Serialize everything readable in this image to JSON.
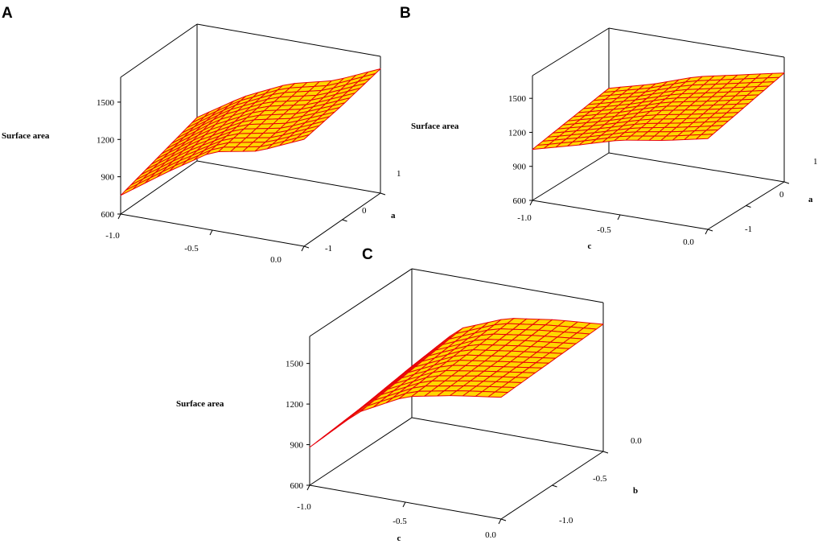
{
  "chart_data": [
    {
      "type": "surface",
      "panel_label": "A",
      "zlabel": "Surface area",
      "zticks": [
        "600",
        "900",
        "1200",
        "1500"
      ],
      "x_ticks": [
        "-1.0",
        "-0.5",
        "0.0"
      ],
      "y_ticks": [
        "-1",
        "0",
        "1"
      ],
      "ylabel": "a",
      "xlabel": "",
      "x": [
        -1.0,
        -0.75,
        -0.5,
        -0.25,
        0.0
      ],
      "y": [
        -1,
        -0.5,
        0,
        0.5,
        1
      ],
      "z": [
        [
          750,
          1000,
          1230,
          1300,
          1460
        ],
        [
          800,
          1050,
          1260,
          1330,
          1490
        ],
        [
          850,
          1100,
          1290,
          1370,
          1520
        ],
        [
          900,
          1150,
          1320,
          1400,
          1560
        ],
        [
          950,
          1180,
          1350,
          1440,
          1600
        ]
      ],
      "color": "#ffd700",
      "gridline_color": "#e8000b"
    },
    {
      "type": "surface",
      "panel_label": "B",
      "zlabel": "Surface area",
      "zticks": [
        "600",
        "900",
        "1200",
        "1500"
      ],
      "x_ticks": [
        "-1.0",
        "-0.5",
        "0.0"
      ],
      "y_ticks": [
        "-1",
        "0",
        "1"
      ],
      "xlabel": "c",
      "ylabel": "a",
      "x": [
        -1.0,
        -0.75,
        -0.5,
        -0.25,
        0.0
      ],
      "y": [
        -1,
        -0.5,
        0,
        0.5,
        1
      ],
      "z": [
        [
          1050,
          1150,
          1260,
          1320,
          1400
        ],
        [
          1080,
          1180,
          1290,
          1360,
          1440
        ],
        [
          1110,
          1210,
          1330,
          1400,
          1480
        ],
        [
          1140,
          1240,
          1360,
          1440,
          1520
        ],
        [
          1170,
          1270,
          1400,
          1480,
          1560
        ]
      ],
      "color": "#ffd700",
      "gridline_color": "#e8000b"
    },
    {
      "type": "surface",
      "panel_label": "C",
      "zlabel": "Surface area",
      "zticks": [
        "600",
        "900",
        "1200",
        "1500"
      ],
      "x_ticks": [
        "-1.0",
        "-0.5",
        "0.0"
      ],
      "y_ticks": [
        "-1.0",
        "-0.5",
        "0.0"
      ],
      "xlabel": "c",
      "ylabel": "b",
      "x": [
        -1.0,
        -0.75,
        -0.5,
        -0.25,
        0.0
      ],
      "y": [
        -1.0,
        -0.75,
        -0.5,
        -0.25,
        0.0
      ],
      "z": [
        [
          880,
          1200,
          1380,
          1450,
          1500
        ],
        [
          900,
          1230,
          1400,
          1460,
          1510
        ],
        [
          920,
          1260,
          1420,
          1470,
          1520
        ],
        [
          950,
          1290,
          1440,
          1490,
          1530
        ],
        [
          980,
          1320,
          1460,
          1510,
          1540
        ]
      ],
      "color": "#ffd700",
      "gridline_color": "#e8000b"
    }
  ]
}
